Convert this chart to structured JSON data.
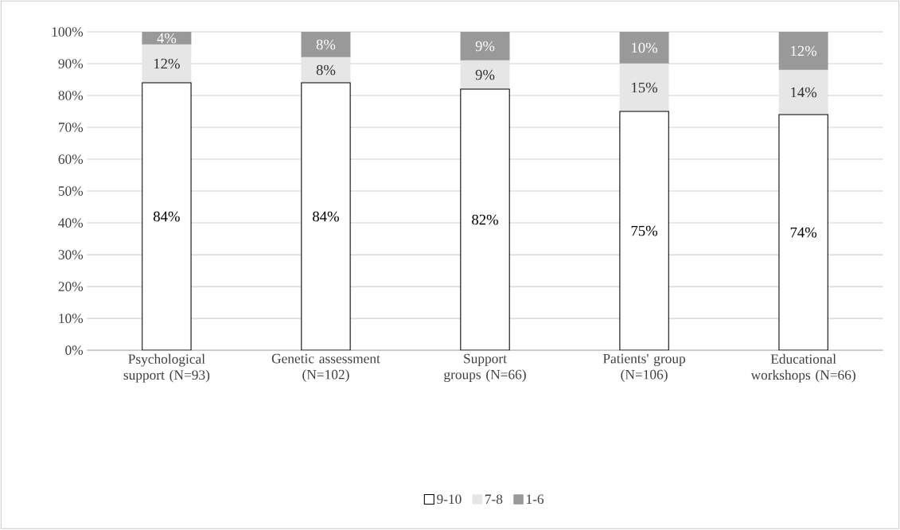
{
  "chart_data": {
    "type": "bar",
    "stacked": true,
    "categories": [
      "Psychological support (N=93)",
      "Genetic assessment (N=102)",
      "Support groups (N=66)",
      "Patients' group (N=106)",
      "Educational workshops (N=66)"
    ],
    "series": [
      {
        "name": "9-10",
        "color": "#ffffff",
        "values": [
          84,
          84,
          82,
          75,
          74
        ],
        "value_labels": [
          "84%",
          "84%",
          "82%",
          "75%",
          "74%"
        ]
      },
      {
        "name": "7-8",
        "color": "#e6e6e6",
        "values": [
          12,
          8,
          9,
          15,
          14
        ],
        "value_labels": [
          "12%",
          "8%",
          "9%",
          "15%",
          "14%"
        ]
      },
      {
        "name": "1-6",
        "color": "#999999",
        "values": [
          4,
          8,
          9,
          10,
          12
        ],
        "value_labels": [
          "4%",
          "8%",
          "9%",
          "10%",
          "12%"
        ]
      }
    ],
    "ylim": [
      0,
      100
    ],
    "yticks": [
      {
        "value": 0,
        "label": "0%"
      },
      {
        "value": 10,
        "label": "10%"
      },
      {
        "value": 20,
        "label": "20%"
      },
      {
        "value": 30,
        "label": "30%"
      },
      {
        "value": 40,
        "label": "40%"
      },
      {
        "value": 50,
        "label": "50%"
      },
      {
        "value": 60,
        "label": "60%"
      },
      {
        "value": 70,
        "label": "70%"
      },
      {
        "value": 80,
        "label": "80%"
      },
      {
        "value": 90,
        "label": "90%"
      },
      {
        "value": 100,
        "label": "100%"
      }
    ],
    "grid": "y",
    "legend": "bottom"
  }
}
